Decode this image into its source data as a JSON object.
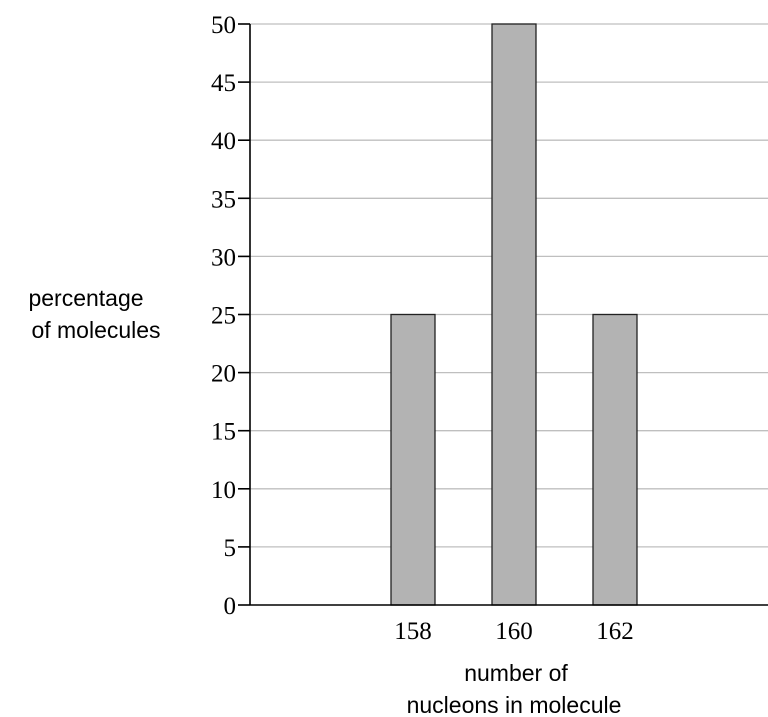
{
  "chart_data": {
    "type": "bar",
    "categories": [
      "158",
      "160",
      "162"
    ],
    "values": [
      25,
      50,
      25
    ],
    "xlabel": [
      "number of",
      "nucleons in molecule"
    ],
    "ylabel": [
      "percentage",
      "of molecules"
    ],
    "ylim": [
      0,
      50
    ],
    "yticks": [
      0,
      5,
      10,
      15,
      20,
      25,
      30,
      35,
      40,
      45,
      50
    ],
    "grid": "horizontal",
    "legend": "none",
    "colors": {
      "bar_fill": "#b3b3b3",
      "bar_stroke": "#222222",
      "grid": "#bfbfbf",
      "axis": "#000000"
    }
  }
}
